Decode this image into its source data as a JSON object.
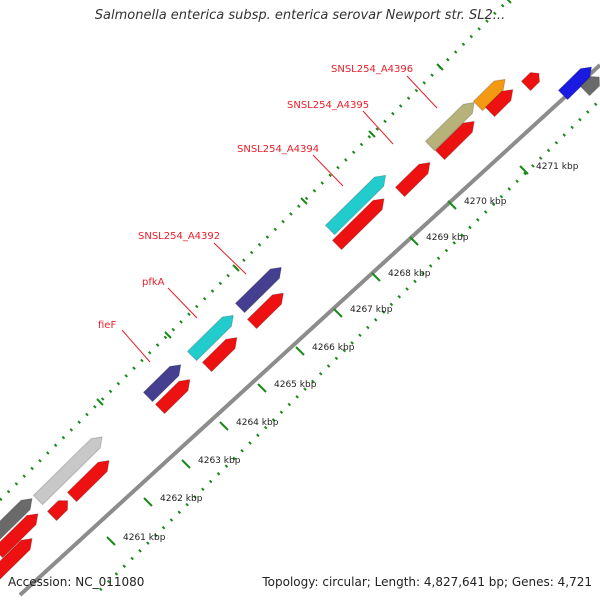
{
  "title": "Salmonella enterica subsp. enterica serovar Newport str. SL2...",
  "footer": {
    "accession": "Accession: NC_011080",
    "summary": "Topology: circular; Length: 4,827,641 bp; Genes: 4,721"
  },
  "colors": {
    "backbone": "#8c8c8c",
    "tick": "#1a8a1a",
    "label": "#e8202a",
    "cds_red": "#ee1111",
    "cyan": "#22cccc",
    "indigo": "#443f8f",
    "olive": "#b7b27a",
    "orange": "#f39a12",
    "light_gray": "#c8c8c8",
    "dark_gray": "#6a6a6a",
    "blue": "#1a1ae0"
  },
  "scale_labels": [
    "4261 kbp",
    "4262 kbp",
    "4263 kbp",
    "4264 kbp",
    "4265 kbp",
    "4266 kbp",
    "4267 kbp",
    "4268 kbp",
    "4269 kbp",
    "4270 kbp",
    "4271 kbp"
  ],
  "gene_labels": [
    {
      "text": "fieF",
      "feature": 1
    },
    {
      "text": "pfkA",
      "feature": 2
    },
    {
      "text": "SNSL254_A4392",
      "feature": 3
    },
    {
      "text": "SNSL254_A4394",
      "feature": 4
    },
    {
      "text": "SNSL254_A4395",
      "feature": 5
    },
    {
      "text": "SNSL254_A4396",
      "feature": 6
    }
  ],
  "features": [
    {
      "track": "outer",
      "color": "light_gray"
    },
    {
      "track": "outer",
      "color": "indigo"
    },
    {
      "track": "outer",
      "color": "cyan"
    },
    {
      "track": "outer",
      "color": "indigo"
    },
    {
      "track": "outer",
      "color": "cyan"
    },
    {
      "track": "outer",
      "color": "olive"
    },
    {
      "track": "outer",
      "color": "orange"
    },
    {
      "track": "outer",
      "color": "blue"
    },
    {
      "track": "outer",
      "color": "dark_gray"
    },
    {
      "track": "inner",
      "color": "cds_red"
    },
    {
      "track": "inner",
      "color": "cds_red"
    },
    {
      "track": "inner",
      "color": "cds_red"
    },
    {
      "track": "inner",
      "color": "cds_red"
    },
    {
      "track": "inner",
      "color": "cds_red"
    },
    {
      "track": "inner",
      "color": "cds_red"
    },
    {
      "track": "inner",
      "color": "cds_red"
    },
    {
      "track": "inner",
      "color": "cds_red"
    },
    {
      "track": "inner",
      "color": "cds_red"
    },
    {
      "track": "inner",
      "color": "cds_red"
    },
    {
      "track": "inner",
      "color": "cds_red"
    },
    {
      "track": "inner",
      "color": "cds_red"
    },
    {
      "track": "inner",
      "color": "cyan"
    },
    {
      "track": "inner",
      "color": "dark_gray"
    }
  ]
}
